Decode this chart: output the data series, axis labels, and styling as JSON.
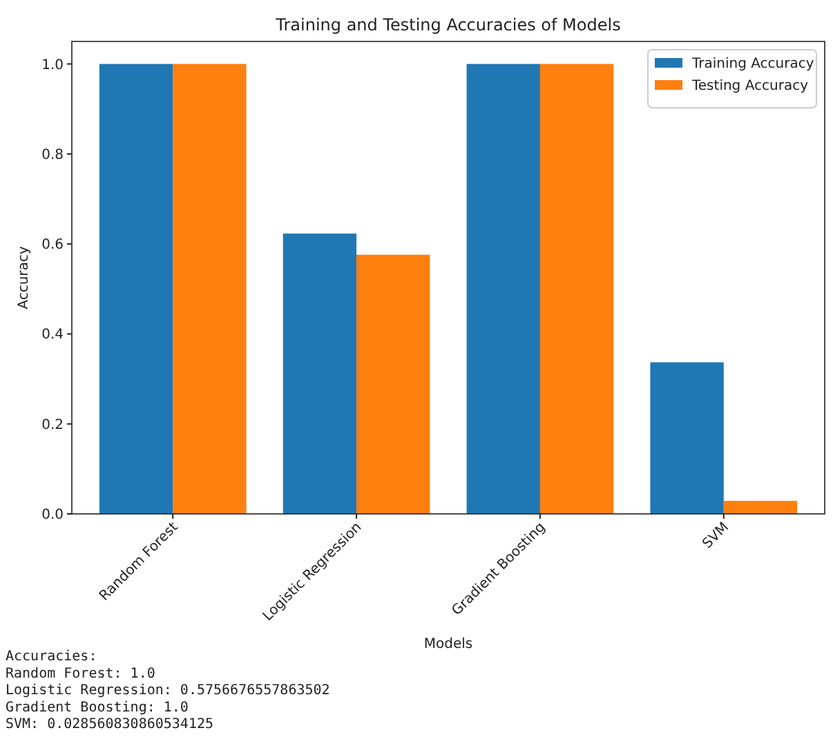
{
  "chart_data": {
    "type": "bar",
    "title": "Training and Testing Accuracies of Models",
    "xlabel": "Models",
    "ylabel": "Accuracy",
    "categories": [
      "Random Forest",
      "Logistic Regression",
      "Gradient Boosting",
      "SVM"
    ],
    "series": [
      {
        "name": "Training Accuracy",
        "color": "#1f77b4",
        "values": [
          1.0,
          0.623,
          1.0,
          0.337
        ]
      },
      {
        "name": "Testing Accuracy",
        "color": "#ff7f0e",
        "values": [
          1.0,
          0.576,
          1.0,
          0.029
        ]
      }
    ],
    "ylim": [
      0,
      1.05
    ],
    "yticks": [
      {
        "value": 0,
        "label": "0.0"
      },
      {
        "value": 0.2,
        "label": "0.2"
      },
      {
        "value": 0.4,
        "label": "0.4"
      },
      {
        "value": 0.6,
        "label": "0.6"
      },
      {
        "value": 0.8,
        "label": "0.8"
      },
      {
        "value": 1,
        "label": "1.0"
      }
    ],
    "legend": "top right",
    "grid": false,
    "annotations": [
      "Accuracies:",
      "Random Forest: 1.0",
      "Logistic Regression: 0.5756676557863502",
      "Gradient Boosting: 1.0",
      "SVM: 0.028560830860534125"
    ]
  }
}
